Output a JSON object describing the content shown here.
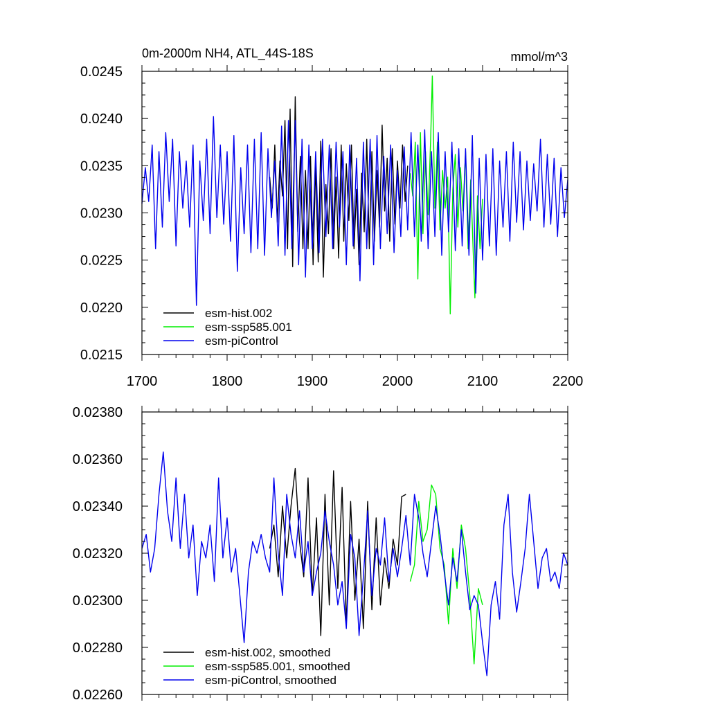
{
  "chart_data": [
    {
      "type": "line",
      "title": "0m-2000m NH4, ATL_44S-18S",
      "units": "mmol/m^3",
      "xlabel": "",
      "ylabel": "",
      "xlim": [
        1700,
        2200
      ],
      "ylim": [
        0.0215,
        0.0245
      ],
      "xticks": [
        "1700",
        "1800",
        "1900",
        "2000",
        "2100",
        "2200"
      ],
      "yticks": [
        "0.0215",
        "0.0220",
        "0.0225",
        "0.0230",
        "0.0235",
        "0.0240",
        "0.0245"
      ],
      "legend_position": "bottom-left",
      "series": [
        {
          "name": "esm-hist.002",
          "color": "#000000",
          "x": [
            1850,
            1853,
            1856,
            1859,
            1862,
            1865,
            1868,
            1871,
            1874,
            1877,
            1880,
            1883,
            1886,
            1889,
            1892,
            1895,
            1898,
            1901,
            1904,
            1907,
            1910,
            1913,
            1916,
            1919,
            1922,
            1925,
            1928,
            1931,
            1934,
            1937,
            1940,
            1943,
            1946,
            1949,
            1952,
            1955,
            1958,
            1961,
            1964,
            1967,
            1970,
            1973,
            1976,
            1979,
            1982,
            1985,
            1988,
            1991,
            1994,
            1997,
            2000,
            2003,
            2006,
            2009,
            2012
          ],
          "values": [
            0.02338,
            0.02305,
            0.02372,
            0.0229,
            0.02355,
            0.02318,
            0.02398,
            0.02262,
            0.0241,
            0.02243,
            0.02423,
            0.0228,
            0.0236,
            0.02262,
            0.02345,
            0.02262,
            0.0236,
            0.02245,
            0.0235,
            0.02248,
            0.02376,
            0.02232,
            0.0233,
            0.02278,
            0.02368,
            0.02262,
            0.02338,
            0.02252,
            0.02372,
            0.0227,
            0.02352,
            0.02292,
            0.02372,
            0.02262,
            0.02325,
            0.02245,
            0.02342,
            0.0228,
            0.02378,
            0.02262,
            0.02365,
            0.0227,
            0.02345,
            0.02285,
            0.02393,
            0.02302,
            0.02358,
            0.0227,
            0.02368,
            0.02288,
            0.02355,
            0.02305,
            0.02372,
            0.02312,
            0.0235
          ]
        },
        {
          "name": "esm-ssp585.001",
          "color": "#00ee00",
          "x": [
            2015,
            2018,
            2021,
            2024,
            2027,
            2030,
            2033,
            2036,
            2039,
            2041,
            2044,
            2047,
            2050,
            2053,
            2056,
            2059,
            2062,
            2065,
            2068,
            2071,
            2074,
            2077,
            2080,
            2083,
            2086,
            2089,
            2091,
            2094,
            2097,
            2100
          ],
          "values": [
            0.02342,
            0.02318,
            0.02375,
            0.0223,
            0.02385,
            0.02278,
            0.02365,
            0.02298,
            0.02378,
            0.02445,
            0.02305,
            0.02375,
            0.02282,
            0.02345,
            0.02305,
            0.02338,
            0.02193,
            0.02325,
            0.02362,
            0.02285,
            0.02348,
            0.02302,
            0.02365,
            0.02262,
            0.02335,
            0.02258,
            0.0221,
            0.02318,
            0.02262,
            0.02315
          ]
        },
        {
          "name": "esm-piControl",
          "color": "#0000ee",
          "x": [
            1700,
            1704,
            1708,
            1712,
            1716,
            1720,
            1724,
            1728,
            1732,
            1736,
            1740,
            1744,
            1748,
            1752,
            1756,
            1760,
            1764,
            1768,
            1772,
            1776,
            1780,
            1784,
            1788,
            1792,
            1796,
            1800,
            1804,
            1808,
            1812,
            1816,
            1820,
            1824,
            1828,
            1832,
            1836,
            1840,
            1844,
            1848,
            1852,
            1856,
            1860,
            1864,
            1868,
            1872,
            1876,
            1880,
            1884,
            1888,
            1892,
            1896,
            1900,
            1904,
            1908,
            1912,
            1916,
            1920,
            1924,
            1928,
            1932,
            1936,
            1940,
            1944,
            1948,
            1952,
            1956,
            1960,
            1964,
            1968,
            1972,
            1976,
            1980,
            1984,
            1988,
            1992,
            1996,
            2000,
            2004,
            2008,
            2012,
            2016,
            2020,
            2024,
            2028,
            2032,
            2036,
            2040,
            2044,
            2048,
            2052,
            2056,
            2060,
            2064,
            2068,
            2072,
            2076,
            2080,
            2084,
            2088,
            2092,
            2096,
            2100,
            2104,
            2108,
            2112,
            2116,
            2120,
            2124,
            2128,
            2132,
            2136,
            2140,
            2144,
            2148,
            2152,
            2156,
            2160,
            2164,
            2168,
            2172,
            2176,
            2180,
            2184,
            2188,
            2192,
            2196,
            2200
          ],
          "values": [
            0.0231,
            0.02348,
            0.02312,
            0.02372,
            0.02262,
            0.02365,
            0.02285,
            0.02385,
            0.02312,
            0.02378,
            0.02265,
            0.02365,
            0.02305,
            0.02355,
            0.02285,
            0.02372,
            0.02202,
            0.02355,
            0.02292,
            0.02378,
            0.02278,
            0.02402,
            0.02295,
            0.02372,
            0.02288,
            0.02365,
            0.0227,
            0.02382,
            0.02238,
            0.02348,
            0.02278,
            0.02372,
            0.02258,
            0.02378,
            0.02262,
            0.02385,
            0.02255,
            0.02368,
            0.02295,
            0.02355,
            0.02265,
            0.02392,
            0.02255,
            0.02398,
            0.02262,
            0.02398,
            0.02245,
            0.02378,
            0.02232,
            0.02372,
            0.02262,
            0.02365,
            0.02258,
            0.02378,
            0.02275,
            0.02372,
            0.02262,
            0.02375,
            0.02285,
            0.02365,
            0.02245,
            0.02372,
            0.02265,
            0.02358,
            0.02228,
            0.02375,
            0.02262,
            0.02378,
            0.02245,
            0.02382,
            0.02262,
            0.0236,
            0.02278,
            0.02372,
            0.02258,
            0.02345,
            0.02275,
            0.0237,
            0.02282,
            0.02385,
            0.02275,
            0.02372,
            0.0227,
            0.02388,
            0.02262,
            0.02365,
            0.02275,
            0.02385,
            0.02255,
            0.02365,
            0.0228,
            0.02375,
            0.0226,
            0.02368,
            0.02265,
            0.02368,
            0.02255,
            0.02382,
            0.02215,
            0.02358,
            0.0225,
            0.02362,
            0.02265,
            0.02368,
            0.02255,
            0.02355,
            0.02285,
            0.02365,
            0.0227,
            0.02375,
            0.0229,
            0.02365,
            0.02282,
            0.02355,
            0.02292,
            0.02352,
            0.02302,
            0.02378,
            0.02285,
            0.02362,
            0.02288,
            0.02358,
            0.02275,
            0.02348,
            0.02295,
            0.02335
          ]
        }
      ]
    },
    {
      "type": "line",
      "title": "",
      "xlabel": "",
      "ylabel": "",
      "xlim": [
        1700,
        2200
      ],
      "ylim": [
        0.0226,
        0.0238
      ],
      "xticks": [
        "1700",
        "1800",
        "1900",
        "2000",
        "2100",
        "2200"
      ],
      "yticks": [
        "0.02260",
        "0.02280",
        "0.02300",
        "0.02320",
        "0.02340",
        "0.02360",
        "0.02380"
      ],
      "legend_position": "bottom-left",
      "series": [
        {
          "name": "esm-hist.002, smoothed",
          "color": "#000000",
          "x": [
            1850,
            1855,
            1860,
            1865,
            1870,
            1875,
            1880,
            1885,
            1890,
            1895,
            1900,
            1905,
            1910,
            1915,
            1920,
            1925,
            1930,
            1935,
            1940,
            1945,
            1950,
            1955,
            1960,
            1965,
            1970,
            1975,
            1980,
            1985,
            1990,
            1995,
            2000,
            2005,
            2010
          ],
          "values": [
            0.02322,
            0.02332,
            0.0231,
            0.0234,
            0.02318,
            0.0234,
            0.02356,
            0.02325,
            0.0231,
            0.02352,
            0.02302,
            0.02335,
            0.02285,
            0.02345,
            0.02298,
            0.02355,
            0.02305,
            0.02348,
            0.0229,
            0.02342,
            0.023,
            0.02326,
            0.02288,
            0.02342,
            0.02296,
            0.02335,
            0.02298,
            0.02318,
            0.02305,
            0.02326,
            0.02315,
            0.02344,
            0.02345
          ]
        },
        {
          "name": "esm-ssp585.001, smoothed",
          "color": "#00ee00",
          "x": [
            2015,
            2020,
            2025,
            2030,
            2035,
            2040,
            2045,
            2050,
            2055,
            2060,
            2065,
            2070,
            2075,
            2080,
            2085,
            2090,
            2095,
            2100
          ],
          "values": [
            0.02308,
            0.02315,
            0.02342,
            0.02325,
            0.0233,
            0.02349,
            0.02345,
            0.02322,
            0.02315,
            0.0229,
            0.02322,
            0.02305,
            0.02332,
            0.02322,
            0.02302,
            0.02273,
            0.02305,
            0.02298
          ]
        },
        {
          "name": "esm-piControl, smoothed",
          "color": "#0000ee",
          "x": [
            1700,
            1705,
            1710,
            1715,
            1720,
            1725,
            1730,
            1735,
            1740,
            1745,
            1750,
            1755,
            1760,
            1765,
            1770,
            1775,
            1780,
            1785,
            1790,
            1795,
            1800,
            1805,
            1810,
            1815,
            1820,
            1825,
            1830,
            1835,
            1840,
            1845,
            1850,
            1855,
            1860,
            1865,
            1870,
            1875,
            1880,
            1885,
            1890,
            1895,
            1900,
            1905,
            1910,
            1915,
            1920,
            1925,
            1930,
            1935,
            1940,
            1945,
            1950,
            1955,
            1960,
            1965,
            1970,
            1975,
            1980,
            1985,
            1990,
            1995,
            2000,
            2005,
            2010,
            2015,
            2020,
            2025,
            2030,
            2035,
            2040,
            2045,
            2050,
            2055,
            2060,
            2065,
            2070,
            2075,
            2080,
            2085,
            2090,
            2095,
            2100,
            2105,
            2110,
            2115,
            2120,
            2125,
            2130,
            2135,
            2140,
            2145,
            2150,
            2155,
            2160,
            2165,
            2170,
            2175,
            2180,
            2185,
            2190,
            2195,
            2200
          ],
          "values": [
            0.02322,
            0.02328,
            0.02312,
            0.02322,
            0.02345,
            0.02363,
            0.02338,
            0.02325,
            0.02352,
            0.02322,
            0.02345,
            0.02318,
            0.02332,
            0.02302,
            0.02325,
            0.02318,
            0.02332,
            0.02308,
            0.02352,
            0.02318,
            0.02335,
            0.02312,
            0.02322,
            0.02302,
            0.02282,
            0.02312,
            0.02325,
            0.0232,
            0.02328,
            0.02318,
            0.02312,
            0.02352,
            0.0232,
            0.02302,
            0.02345,
            0.02328,
            0.02318,
            0.02338,
            0.02312,
            0.02325,
            0.02302,
            0.02312,
            0.0232,
            0.02338,
            0.02325,
            0.02315,
            0.02298,
            0.02308,
            0.02288,
            0.02328,
            0.02318,
            0.02285,
            0.0231,
            0.02338,
            0.02302,
            0.02322,
            0.02315,
            0.02335,
            0.02308,
            0.02322,
            0.0231,
            0.02322,
            0.02336,
            0.02315,
            0.02345,
            0.02335,
            0.0232,
            0.0231,
            0.02325,
            0.0234,
            0.02328,
            0.02312,
            0.02298,
            0.02318,
            0.02308,
            0.0233,
            0.02312,
            0.02296,
            0.02302,
            0.02298,
            0.02282,
            0.02268,
            0.02298,
            0.02308,
            0.02292,
            0.02332,
            0.02345,
            0.02312,
            0.02295,
            0.02308,
            0.02322,
            0.02345,
            0.02325,
            0.02305,
            0.02318,
            0.02322,
            0.02308,
            0.02312,
            0.02305,
            0.0232,
            0.02315
          ]
        }
      ]
    }
  ]
}
